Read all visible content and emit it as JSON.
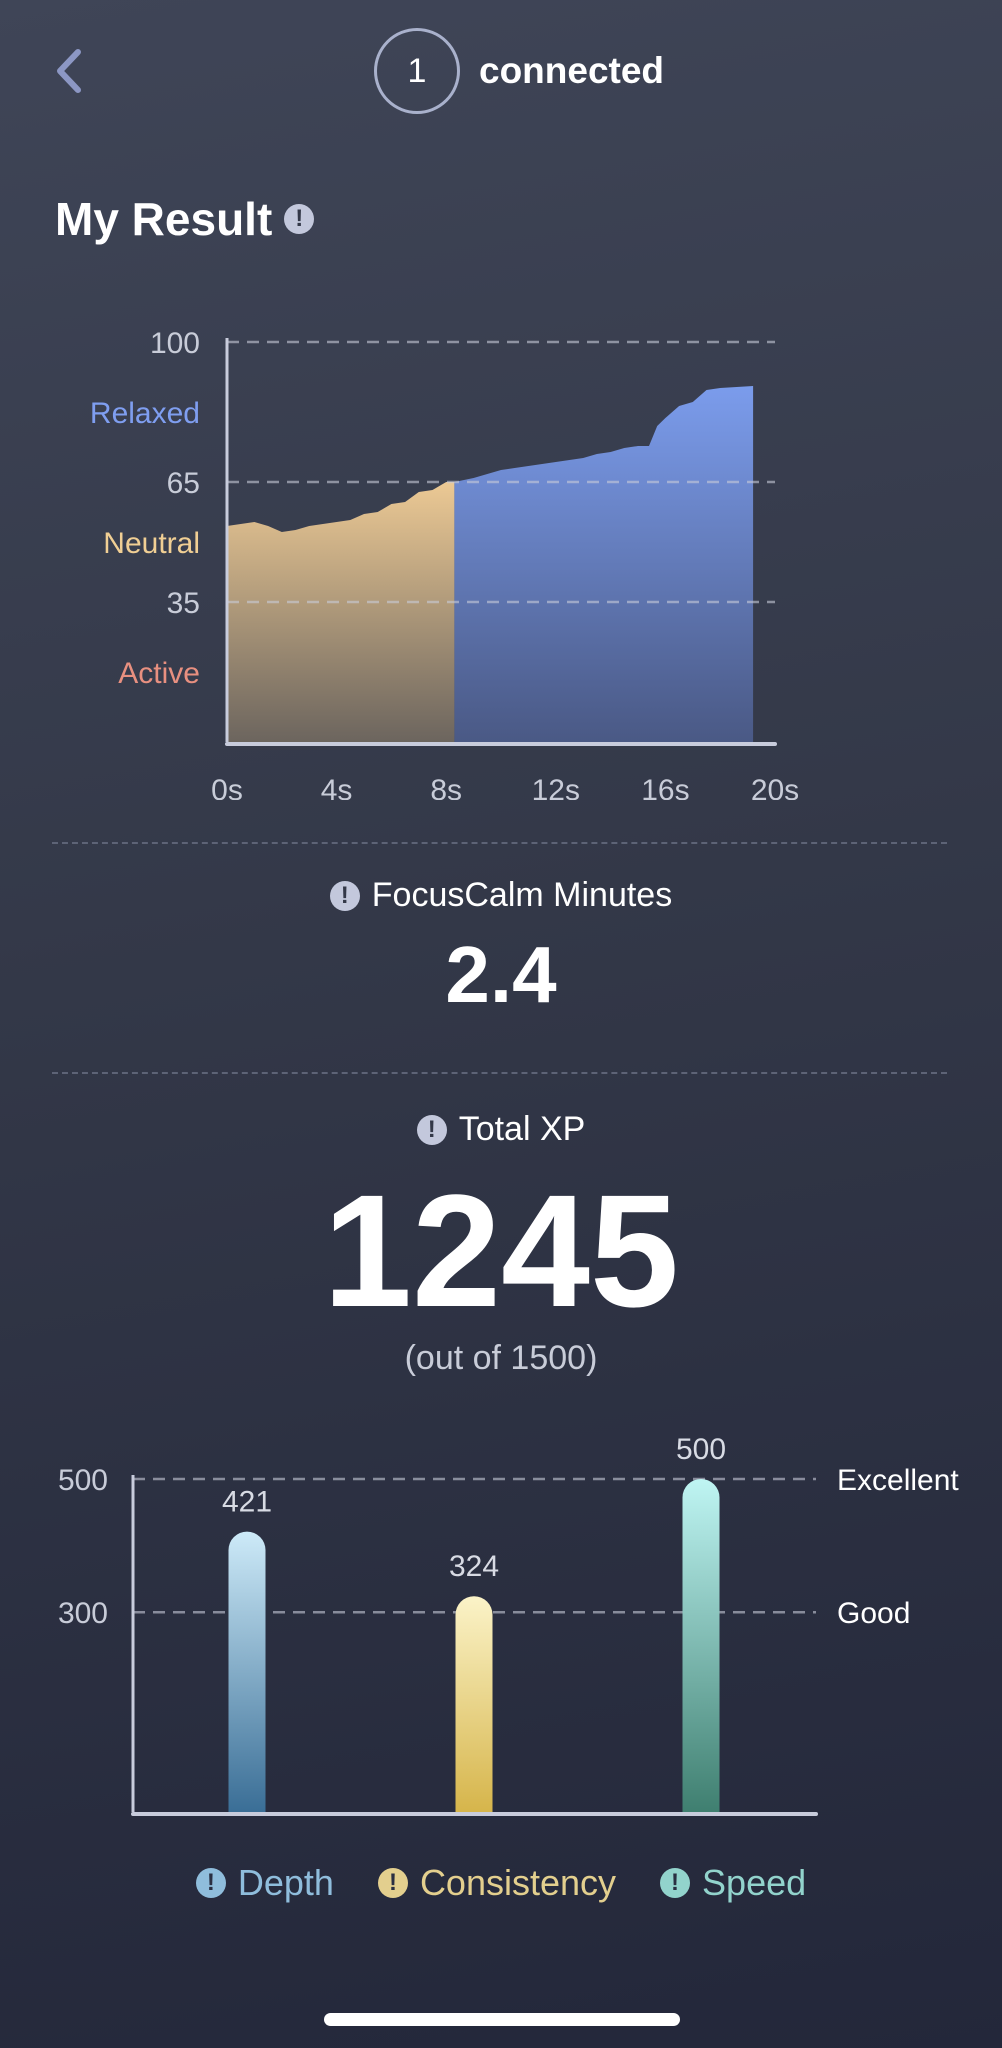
{
  "header": {
    "back_icon": "chevron-left-icon",
    "connected_count": "1",
    "connected_label": "connected"
  },
  "result": {
    "title": "My Result",
    "info_icon": "info-exclamation-icon"
  },
  "focuscalm": {
    "label": "FocusCalm Minutes",
    "value": "2.4"
  },
  "xp": {
    "label": "Total XP",
    "value": "1245",
    "subtitle": "(out of 1500)"
  },
  "legend": [
    {
      "label": "Depth",
      "color": "#8fbddc"
    },
    {
      "label": "Consistency",
      "color": "#e3cf8e"
    },
    {
      "label": "Speed",
      "color": "#92d3cc"
    }
  ],
  "chart_data": [
    {
      "type": "area",
      "xlim": [
        0,
        20
      ],
      "ylim": [
        0,
        100
      ],
      "x_ticks": [
        "0s",
        "4s",
        "8s",
        "12s",
        "16s",
        "20s"
      ],
      "x_tick_values": [
        0,
        4,
        8,
        12,
        16,
        20
      ],
      "y_ticks": [
        100,
        65,
        35
      ],
      "y_tick_labels": [
        "100",
        "65",
        "35"
      ],
      "zone_labels": [
        {
          "label": "Relaxed",
          "value": 82.5,
          "color": "#7f9ef0"
        },
        {
          "label": "Neutral",
          "value": 50,
          "color": "#f0cf94"
        },
        {
          "label": "Active",
          "value": 17.5,
          "color": "#e89080"
        }
      ],
      "grid": "dashed horizontal at ticks",
      "series": [
        {
          "color": "#ecc994",
          "x": [
            0,
            0.5,
            1,
            1.5,
            2,
            2.5,
            3,
            3.5,
            4,
            4.5,
            5,
            5.5,
            6,
            6.5,
            7,
            7.5,
            8,
            8.3
          ],
          "y": [
            54,
            54.5,
            55,
            54,
            52.5,
            53,
            54,
            54.5,
            55,
            55.5,
            57,
            57.5,
            59.5,
            60,
            62.5,
            63,
            65,
            65
          ]
        },
        {
          "color": "#7b9cec",
          "x": [
            8.3,
            9,
            9.5,
            10,
            10.5,
            11,
            11.5,
            12,
            12.5,
            13,
            13.5,
            14,
            14.5,
            15,
            15.4,
            15.7,
            16,
            16.5,
            17,
            17.5,
            18,
            19.2
          ],
          "y": [
            65,
            66,
            67,
            68,
            68.5,
            69,
            69.5,
            70,
            70.5,
            71,
            72,
            72.5,
            73.5,
            74,
            74,
            79,
            81,
            84,
            85,
            88,
            88.5,
            89
          ]
        }
      ]
    },
    {
      "type": "bar",
      "categories": [
        "Depth",
        "Consistency",
        "Speed"
      ],
      "values": [
        421,
        324,
        500
      ],
      "ylim": [
        0,
        500
      ],
      "y_ticks": [
        500,
        300
      ],
      "reference_lines": [
        {
          "value": 500,
          "label": "Excellent"
        },
        {
          "value": 300,
          "label": "Good"
        }
      ],
      "colors": [
        [
          "#cdeaf8",
          "#3a6e96"
        ],
        [
          "#fbf3c8",
          "#d6b54b"
        ],
        [
          "#bff5f3",
          "#3f7f70"
        ]
      ],
      "grid": "dashed horizontal at ticks"
    }
  ]
}
